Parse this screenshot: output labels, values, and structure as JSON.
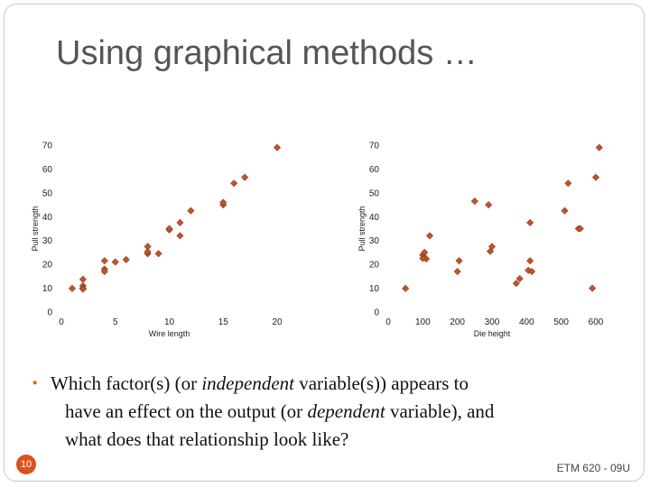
{
  "slide": {
    "title": "Using graphical methods …",
    "question": {
      "line1_pre": "Which factor(s) (or ",
      "line1_em": "independent",
      "line1_post": " variable(s)) appears to",
      "line2_pre": "have an effect on the output (or ",
      "line2_em": "dependent",
      "line2_post": " variable), and",
      "line3": "what does that relationship look like?"
    },
    "page_number": "10",
    "footer": "ETM 620 - 09U",
    "accent_color": "#d9531e",
    "marker_color": "#c0552b"
  },
  "chart_data": [
    {
      "type": "scatter",
      "title": "",
      "xlabel": "Wire length",
      "ylabel": "Pull strength",
      "xlim": [
        0,
        20
      ],
      "ylim": [
        0,
        70
      ],
      "xticks": [
        0,
        5,
        10,
        15,
        20
      ],
      "yticks": [
        0,
        10,
        20,
        30,
        40,
        50,
        60,
        70
      ],
      "grid": false,
      "points": [
        [
          1,
          9.9
        ],
        [
          2,
          11
        ],
        [
          2,
          10
        ],
        [
          2,
          9.6
        ],
        [
          2,
          13.7
        ],
        [
          4,
          18
        ],
        [
          4,
          17
        ],
        [
          4,
          21.5
        ],
        [
          5,
          21
        ],
        [
          6,
          22
        ],
        [
          8,
          24.5
        ],
        [
          8,
          25.3
        ],
        [
          8,
          27.5
        ],
        [
          9,
          24.5
        ],
        [
          10,
          34.5
        ],
        [
          10,
          35
        ],
        [
          11,
          32
        ],
        [
          11,
          37.5
        ],
        [
          12,
          42.5
        ],
        [
          15,
          45
        ],
        [
          15,
          46
        ],
        [
          16,
          54
        ],
        [
          17,
          56.5
        ],
        [
          20,
          69
        ]
      ]
    },
    {
      "type": "scatter",
      "title": "",
      "xlabel": "Die height",
      "ylabel": "Pull strength",
      "xlim": [
        0,
        600
      ],
      "ylim": [
        0,
        70
      ],
      "xticks": [
        0,
        100,
        200,
        300,
        400,
        500,
        600
      ],
      "yticks": [
        0,
        10,
        20,
        30,
        40,
        50,
        60,
        70
      ],
      "grid": false,
      "points": [
        [
          50,
          9.9
        ],
        [
          100,
          24
        ],
        [
          105,
          25
        ],
        [
          110,
          22.3
        ],
        [
          100,
          22.5
        ],
        [
          120,
          32
        ],
        [
          205,
          21.5
        ],
        [
          200,
          17
        ],
        [
          250,
          46.5
        ],
        [
          290,
          45
        ],
        [
          300,
          27.5
        ],
        [
          295,
          25.5
        ],
        [
          370,
          12
        ],
        [
          380,
          14
        ],
        [
          410,
          21.5
        ],
        [
          405,
          17.5
        ],
        [
          415,
          17
        ],
        [
          410,
          37.5
        ],
        [
          510,
          42.5
        ],
        [
          520,
          54
        ],
        [
          550,
          35
        ],
        [
          555,
          35
        ],
        [
          590,
          10
        ],
        [
          600,
          56.5
        ],
        [
          610,
          69
        ]
      ]
    }
  ]
}
